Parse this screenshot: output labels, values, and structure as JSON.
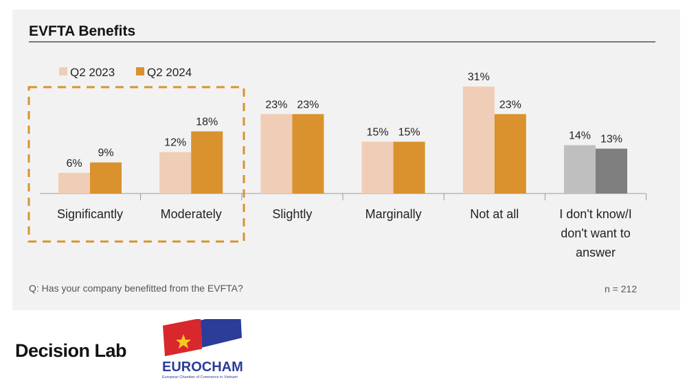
{
  "chart_data": {
    "type": "bar",
    "title": "EVFTA Benefits",
    "categories": [
      "Significantly",
      "Moderately",
      "Slightly",
      "Marginally",
      "Not at all",
      "I don't know/I don't want to answer"
    ],
    "category_lines": [
      [
        "Significantly"
      ],
      [
        "Moderately"
      ],
      [
        "Slightly"
      ],
      [
        "Marginally"
      ],
      [
        "Not at all"
      ],
      [
        "I don't know/I",
        "don't want to",
        "answer"
      ]
    ],
    "series": [
      {
        "name": "Q2 2023",
        "values": [
          6,
          12,
          23,
          15,
          31,
          14
        ],
        "labels": [
          "6%",
          "12%",
          "23%",
          "15%",
          "31%",
          "14%"
        ],
        "color": "#f0cdb6",
        "alt_color": "#bfbfbf"
      },
      {
        "name": "Q2 2024",
        "values": [
          9,
          18,
          23,
          15,
          23,
          13
        ],
        "labels": [
          "9%",
          "18%",
          "23%",
          "15%",
          "23%",
          "13%"
        ],
        "color": "#d9922e",
        "alt_color": "#7f7f7f"
      }
    ],
    "ylim": [
      0,
      35
    ],
    "legend": "top-left",
    "highlight": [
      "Significantly",
      "Moderately"
    ],
    "highlight_color": "#d9922e",
    "grid": false
  },
  "footer": {
    "question": "Q: Has your company benefitted from the EVFTA?",
    "n": "n = 212"
  },
  "logos": {
    "decision_lab": "Decision Lab",
    "eurocham": "EUROCHAM",
    "eurocham_sub": "European Chamber of Commerce in Vietnam"
  }
}
